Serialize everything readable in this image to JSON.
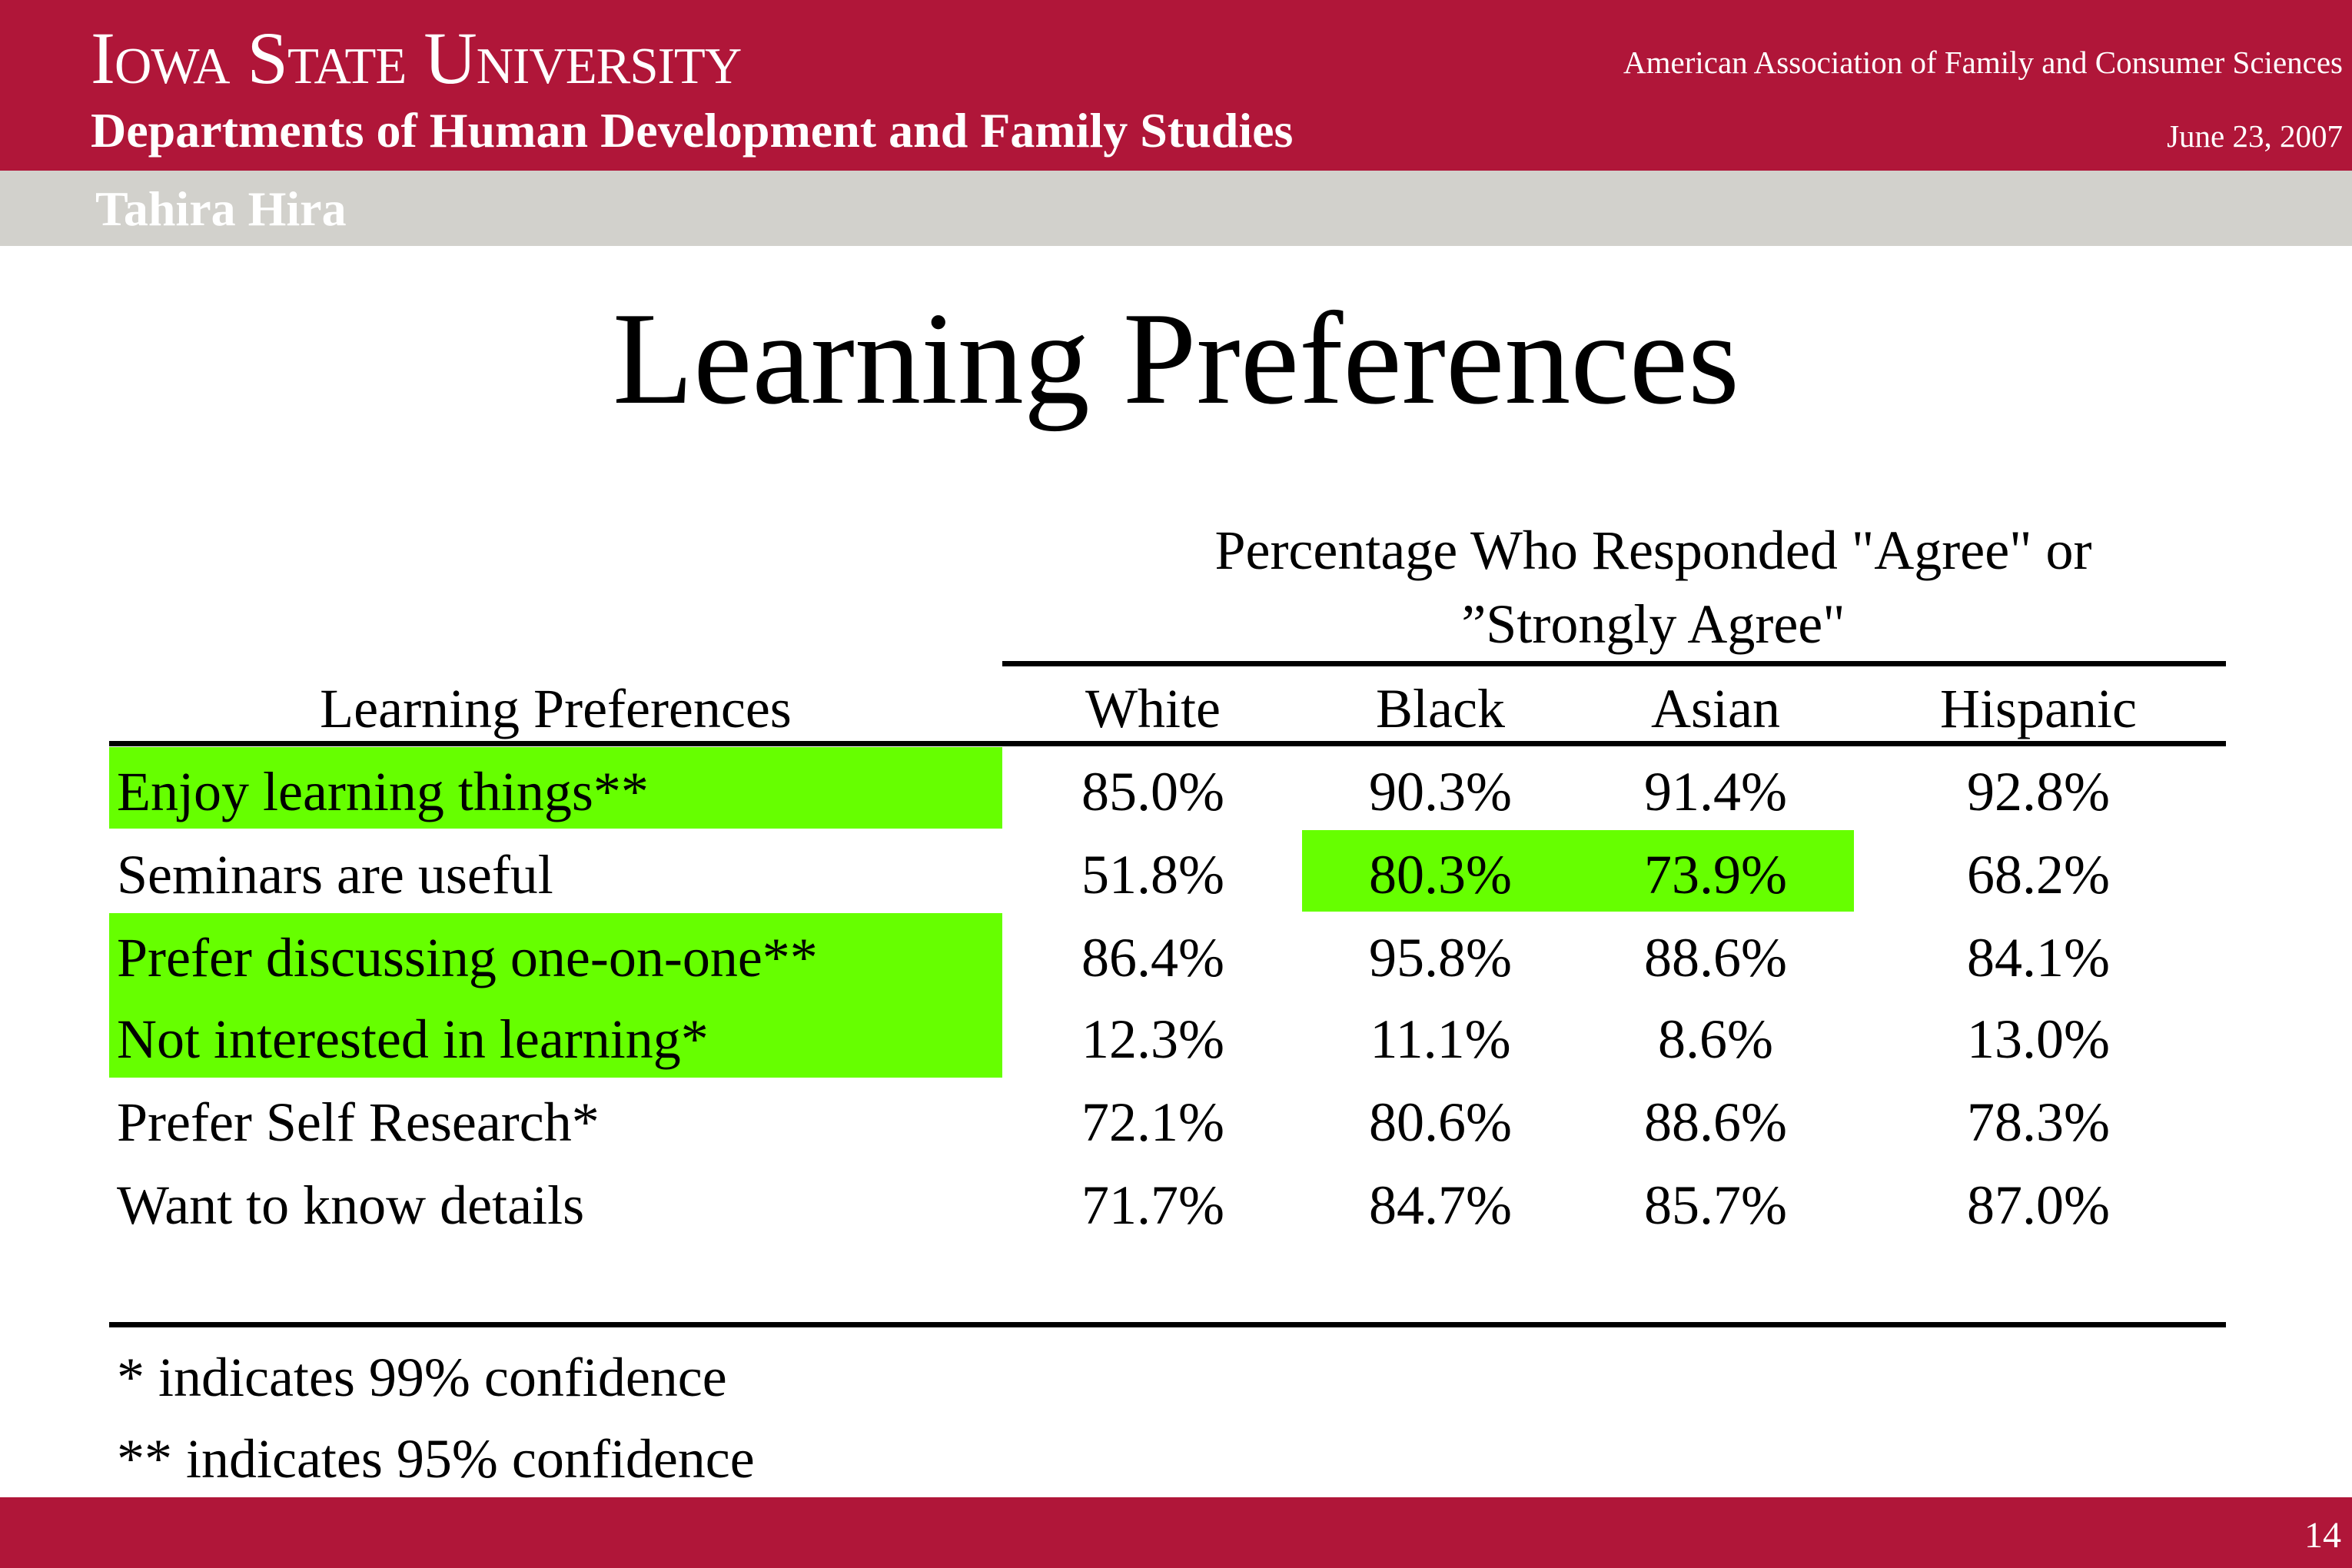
{
  "header": {
    "university": "Iowa State University",
    "department": "Departments of Human Development and Family Studies",
    "conference": "American Association of Family and Consumer Sciences",
    "date": "June 23, 2007",
    "author": "Tahira Hira"
  },
  "slide": {
    "title": "Learning Preferences",
    "page_number": "14"
  },
  "table": {
    "group_header_line1": "Percentage Who Responded \"Agree\" or",
    "group_header_line2": "”Strongly Agree\"",
    "row_header": "Learning Preferences",
    "columns": [
      "White",
      "Black",
      "Asian",
      "Hispanic"
    ],
    "rows": [
      {
        "label": "Enjoy learning things**",
        "values": [
          "85.0%",
          "90.3%",
          "91.4%",
          "92.8%"
        ]
      },
      {
        "label": "Seminars are useful",
        "values": [
          "51.8%",
          "80.3%",
          "73.9%",
          "68.2%"
        ]
      },
      {
        "label": "Prefer discussing one-on-one**",
        "values": [
          "86.4%",
          "95.8%",
          "88.6%",
          "84.1%"
        ]
      },
      {
        "label": "Not interested in learning*",
        "values": [
          "12.3%",
          "11.1%",
          "8.6%",
          "13.0%"
        ]
      },
      {
        "label": "Prefer Self Research*",
        "values": [
          "72.1%",
          "80.6%",
          "88.6%",
          "78.3%"
        ]
      },
      {
        "label": "Want to know details",
        "values": [
          "71.7%",
          "84.7%",
          "85.7%",
          "87.0%"
        ]
      }
    ],
    "highlight_color": "#66FF00",
    "notes": [
      "* indicates 99% confidence",
      "** indicates 95% confidence"
    ]
  },
  "colors": {
    "brand_red": "#B01639",
    "author_bar_gray": "#D2D1CC"
  }
}
